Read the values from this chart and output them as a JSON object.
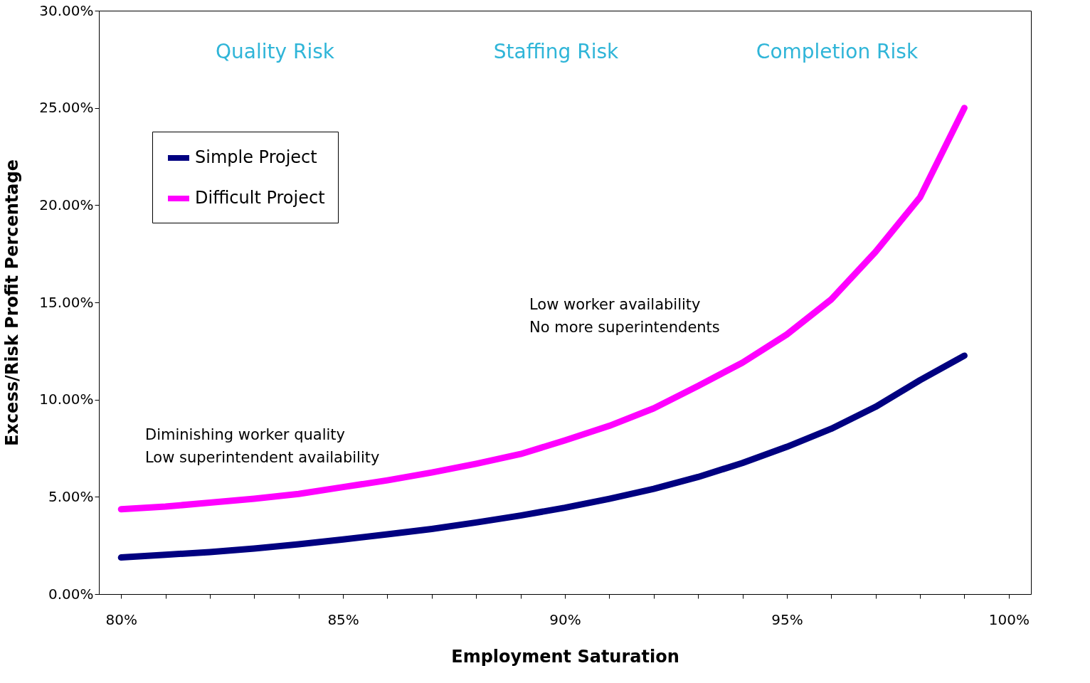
{
  "chart_data": {
    "type": "line",
    "xlabel": "Employment Saturation",
    "ylabel": "Excess/Risk Profit Percentage",
    "categories": [
      "80%",
      null,
      null,
      null,
      null,
      "85%",
      null,
      null,
      null,
      null,
      "90%",
      null,
      null,
      null,
      null,
      "95%",
      null,
      null,
      null,
      null,
      "100%"
    ],
    "series": [
      {
        "name": "Simple Project",
        "color": "#000080",
        "values": [
          1.88,
          2.02,
          2.16,
          2.34,
          2.56,
          2.81,
          3.07,
          3.35,
          3.68,
          4.04,
          4.44,
          4.9,
          5.41,
          6.02,
          6.74,
          7.57,
          8.5,
          9.63,
          11.0,
          12.26,
          null
        ]
      },
      {
        "name": "Difficult Project",
        "color": "#ff00ff",
        "values": [
          4.36,
          4.5,
          4.7,
          4.9,
          5.15,
          5.5,
          5.85,
          6.25,
          6.7,
          7.2,
          7.9,
          8.65,
          9.55,
          10.7,
          11.9,
          13.35,
          15.15,
          17.6,
          20.4,
          25.0,
          null
        ]
      }
    ],
    "ylim": [
      0,
      30
    ],
    "yticks": [
      {
        "value": 0,
        "label": "0.00%"
      },
      {
        "value": 5,
        "label": "5.00%"
      },
      {
        "value": 10,
        "label": "10.00%"
      },
      {
        "value": 15,
        "label": "15.00%"
      },
      {
        "value": 20,
        "label": "20.00%"
      },
      {
        "value": 25,
        "label": "25.00%"
      },
      {
        "value": 30,
        "label": "30.00%"
      }
    ],
    "grid": false,
    "legend": "top left",
    "line_style": "solid",
    "annotations": [
      "Quality Risk",
      "Staffing Risk",
      "Completion Risk",
      "Diminishing worker quality\nLow superintendent availability",
      "Low worker availability\nNo more superintendents"
    ]
  }
}
